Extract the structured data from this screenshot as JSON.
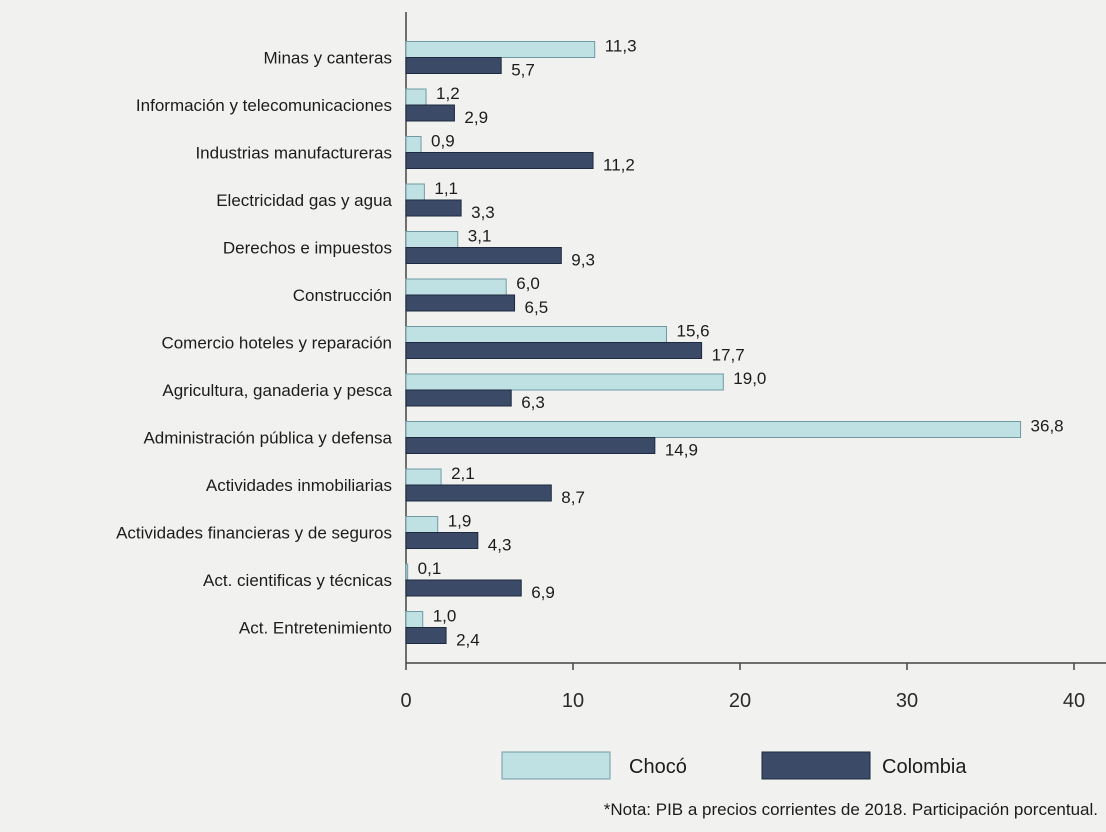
{
  "chart_data": {
    "type": "bar",
    "orientation": "horizontal",
    "categories": [
      "Minas y canteras",
      "Información y telecomunicaciones",
      "Industrias manufactureras",
      "Electricidad gas y agua",
      "Derechos e impuestos",
      "Construcción",
      "Comercio hoteles y reparación",
      "Agricultura, ganaderia y pesca",
      "Administración pública y defensa",
      "Actividades inmobiliarias",
      "Actividades financieras y de seguros",
      "Act. cientificas y técnicas",
      "Act. Entretenimiento"
    ],
    "series": [
      {
        "name": "Chocó",
        "color": "#bfe1e4",
        "values": [
          11.3,
          1.2,
          0.9,
          1.1,
          3.1,
          6.0,
          15.6,
          19.0,
          36.8,
          2.1,
          1.9,
          0.1,
          1.0
        ],
        "labels": [
          "11,3",
          "1,2",
          "0,9",
          "1,1",
          "3,1",
          "6,0",
          "15,6",
          "19,0",
          "36,8",
          "2,1",
          "1,9",
          "0,1",
          "1,0"
        ]
      },
      {
        "name": "Colombia",
        "color": "#3b4b67",
        "values": [
          5.7,
          2.9,
          11.2,
          3.3,
          9.3,
          6.5,
          17.7,
          6.3,
          14.9,
          8.7,
          4.3,
          6.9,
          2.4
        ],
        "labels": [
          "5,7",
          "2,9",
          "11,2",
          "3,3",
          "9,3",
          "6,5",
          "17,7",
          "6,3",
          "14,9",
          "8,7",
          "4,3",
          "6,9",
          "2,4"
        ]
      }
    ],
    "xlim": [
      0,
      40
    ],
    "xticks": [
      "0",
      "10",
      "20",
      "30",
      "40"
    ],
    "grid": false,
    "legend_position": "bottom"
  },
  "note": "*Nota: PIB a precios corrientes de 2018. Participación porcentual."
}
